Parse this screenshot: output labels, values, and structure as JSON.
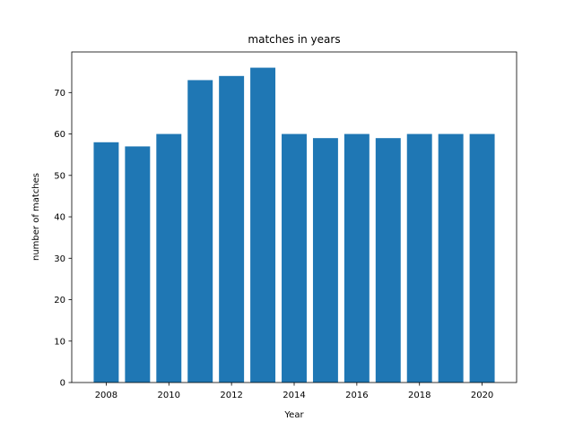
{
  "chart_data": {
    "type": "bar",
    "title": "matches in years",
    "xlabel": "Year",
    "ylabel": "number of matches",
    "x": [
      2008,
      2009,
      2010,
      2011,
      2012,
      2013,
      2014,
      2015,
      2016,
      2017,
      2018,
      2019,
      2020
    ],
    "values": [
      58,
      57,
      60,
      73,
      74,
      76,
      60,
      59,
      60,
      59,
      60,
      60,
      60
    ],
    "xlim": [
      2006.9,
      2021.1
    ],
    "ylim": [
      0,
      79.8
    ],
    "xticks": [
      2008,
      2010,
      2012,
      2014,
      2016,
      2018,
      2020
    ],
    "yticks": [
      0,
      10,
      20,
      30,
      40,
      50,
      60,
      70
    ],
    "bar_width": 0.8,
    "bar_color": "#1f77b4",
    "grid": false,
    "legend": "none"
  }
}
